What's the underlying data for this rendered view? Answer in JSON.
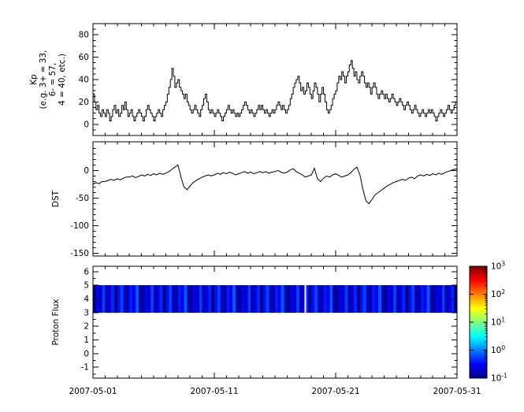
{
  "figure": {
    "background": "#ffffff",
    "frame_color": "#000000",
    "line_color": "#000000",
    "x_axis": {
      "start_day": 1,
      "end_day": 31,
      "tick_days": [
        1,
        11,
        21,
        31
      ],
      "tick_labels": [
        "2007-05-01",
        "2007-05-11",
        "2007-05-21",
        "2007-05-31"
      ],
      "minor_step_days": 1
    }
  },
  "chart_data": [
    {
      "id": "kp",
      "type": "line",
      "step": true,
      "title": "",
      "ylabel": "Kp\n(e.g. 3+ = 33,\n6- = 57,\n4 = 40, etc.)",
      "ylim": [
        -10,
        90
      ],
      "yticks": [
        0,
        20,
        40,
        60,
        80
      ],
      "y_minor_step": 5,
      "points_per_day": 8,
      "line_color": "#000000",
      "values": [
        27,
        20,
        13,
        17,
        10,
        7,
        13,
        10,
        7,
        13,
        10,
        3,
        7,
        13,
        17,
        10,
        13,
        7,
        10,
        17,
        13,
        20,
        13,
        7,
        10,
        13,
        7,
        3,
        7,
        10,
        13,
        10,
        7,
        3,
        7,
        13,
        17,
        13,
        10,
        7,
        3,
        7,
        10,
        13,
        10,
        7,
        13,
        17,
        20,
        27,
        33,
        40,
        50,
        43,
        33,
        37,
        40,
        33,
        30,
        27,
        23,
        27,
        20,
        17,
        13,
        10,
        13,
        17,
        13,
        10,
        7,
        13,
        17,
        23,
        27,
        20,
        13,
        10,
        13,
        10,
        7,
        10,
        13,
        10,
        7,
        3,
        7,
        10,
        13,
        17,
        13,
        10,
        13,
        10,
        7,
        10,
        7,
        10,
        13,
        17,
        20,
        17,
        13,
        10,
        13,
        10,
        7,
        10,
        13,
        17,
        13,
        17,
        13,
        10,
        13,
        10,
        7,
        10,
        13,
        10,
        13,
        17,
        20,
        17,
        13,
        17,
        13,
        10,
        13,
        17,
        23,
        27,
        33,
        37,
        40,
        43,
        37,
        30,
        33,
        27,
        30,
        37,
        33,
        27,
        23,
        30,
        37,
        33,
        27,
        20,
        27,
        33,
        27,
        20,
        13,
        10,
        13,
        17,
        23,
        27,
        30,
        37,
        43,
        40,
        47,
        43,
        37,
        43,
        47,
        53,
        57,
        50,
        43,
        47,
        40,
        37,
        43,
        47,
        43,
        37,
        33,
        37,
        33,
        27,
        33,
        37,
        33,
        27,
        23,
        27,
        30,
        27,
        23,
        27,
        23,
        20,
        23,
        27,
        23,
        20,
        17,
        20,
        23,
        20,
        17,
        13,
        17,
        20,
        17,
        13,
        10,
        13,
        17,
        13,
        10,
        7,
        10,
        13,
        10,
        7,
        10,
        13,
        10,
        13,
        10,
        7,
        3,
        7,
        10,
        13,
        10,
        7,
        10,
        13,
        17,
        13,
        10,
        13,
        17,
        20,
        25,
        23,
        25,
        27,
        23,
        27,
        25,
        23
      ]
    },
    {
      "id": "dst",
      "type": "line",
      "step": false,
      "title": "",
      "ylabel": "DST",
      "ylim": [
        -155,
        52
      ],
      "yticks": [
        0,
        -50,
        -100,
        -150
      ],
      "y_minor_step": 10,
      "points_per_day": 4,
      "line_color": "#000000",
      "values": [
        -25,
        -22,
        -24,
        -20,
        -20,
        -18,
        -16,
        -18,
        -15,
        -17,
        -14,
        -12,
        -12,
        -10,
        -13,
        -11,
        -8,
        -10,
        -7,
        -9,
        -6,
        -8,
        -5,
        -7,
        -5,
        -2,
        2,
        6,
        10,
        -12,
        -30,
        -35,
        -28,
        -22,
        -18,
        -15,
        -12,
        -10,
        -8,
        -10,
        -8,
        -5,
        -7,
        -4,
        -6,
        -3,
        -5,
        -8,
        -6,
        -4,
        -2,
        -5,
        -3,
        -6,
        -4,
        -2,
        -4,
        -2,
        -5,
        -3,
        -2,
        0,
        -3,
        -5,
        -3,
        1,
        3,
        -2,
        -5,
        -8,
        -12,
        -10,
        -8,
        4,
        -15,
        -20,
        -14,
        -10,
        -12,
        -8,
        -6,
        -9,
        -12,
        -10,
        -8,
        -4,
        2,
        6,
        -8,
        -35,
        -55,
        -60,
        -52,
        -44,
        -40,
        -36,
        -32,
        -28,
        -25,
        -22,
        -20,
        -18,
        -16,
        -18,
        -14,
        -12,
        -15,
        -10,
        -8,
        -10,
        -7,
        -9,
        -6,
        -8,
        -5,
        -7,
        -4,
        -2,
        0,
        2,
        3,
        1,
        2,
        4
      ]
    },
    {
      "id": "proton_flux",
      "type": "heatmap",
      "title": "",
      "ylabel": "Proton Flux",
      "ylim": [
        -1.8,
        6.4
      ],
      "yticks": [
        -1,
        0,
        1,
        2,
        3,
        4,
        5,
        6
      ],
      "y_minor_step": 0.5,
      "band_y": [
        3,
        5
      ],
      "points_per_day": 4,
      "gap_day": 18.5,
      "gap_color": "#ffffff",
      "values": [
        0.12,
        0.3,
        0.18,
        0.55,
        0.15,
        0.25,
        0.45,
        0.1,
        0.35,
        0.6,
        0.2,
        0.14,
        0.4,
        0.28,
        0.7,
        0.16,
        0.12,
        0.3,
        0.18,
        0.55,
        0.15,
        0.25,
        0.45,
        0.1,
        0.35,
        0.6,
        0.2,
        0.14,
        0.4,
        0.28,
        0.7,
        0.16,
        0.12,
        0.3,
        0.18,
        0.55,
        0.15,
        0.25,
        0.45,
        0.1,
        0.35,
        0.6,
        0.2,
        0.14,
        0.4,
        0.28,
        0.7,
        0.16,
        0.12,
        0.3,
        0.18,
        0.55,
        0.15,
        0.25,
        0.45,
        0.1,
        0.35,
        0.6,
        0.2,
        0.14,
        0.4,
        0.28,
        0.7,
        0.16,
        0.12,
        0.3,
        0.18,
        0.55,
        0.15,
        0.25,
        0.45,
        0.1,
        0.35,
        0.6,
        0.2,
        0.14,
        0.4,
        0.28,
        0.7,
        0.16,
        0.12,
        0.3,
        0.18,
        0.55,
        0.15,
        0.25,
        0.45,
        0.1,
        0.35,
        0.6,
        0.2,
        0.14,
        0.4,
        0.28,
        0.7,
        0.16,
        0.12,
        0.3,
        0.18,
        0.55,
        0.15,
        0.25,
        0.45,
        0.1,
        0.35,
        0.6,
        0.2,
        0.14,
        0.4,
        0.28,
        0.7,
        0.16,
        0.12,
        0.3,
        0.18,
        0.55,
        0.15,
        0.25,
        0.45,
        0.1,
        0.35,
        0.6,
        0.2,
        0.14
      ],
      "colorbar": {
        "scale": "log",
        "value_range_exponents": [
          -1,
          3
        ],
        "tick_exponents": [
          -1,
          0,
          1,
          2,
          3
        ],
        "tick_labels": [
          "10^-1",
          "10^0",
          "10^1",
          "10^2",
          "10^3"
        ],
        "colormap": "jet",
        "colormap_stops": [
          [
            0.0,
            "#000080"
          ],
          [
            0.125,
            "#0000ff"
          ],
          [
            0.375,
            "#00ffff"
          ],
          [
            0.625,
            "#ffff00"
          ],
          [
            0.875,
            "#ff0000"
          ],
          [
            1.0,
            "#800000"
          ]
        ]
      }
    }
  ]
}
